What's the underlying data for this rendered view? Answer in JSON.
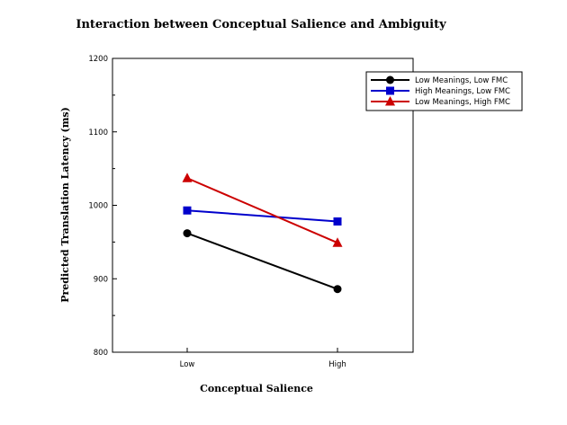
{
  "chart_data": {
    "type": "line",
    "title": "Interaction between Conceptual Salience and Ambiguity",
    "xlabel": "Conceptual Salience",
    "ylabel": "Predicted Translation Latency (ms)",
    "categories": [
      "Low",
      "High"
    ],
    "ylim": [
      800,
      1200
    ],
    "yticks": [
      "800",
      "900",
      "1000",
      "1100",
      "1200"
    ],
    "ytick_values": [
      800,
      900,
      1000,
      1100,
      1200
    ],
    "y_minor_step": 50,
    "grid": false,
    "legend_position": "top-right",
    "series": [
      {
        "name": "Low Meanings, Low FMC",
        "color": "#000000",
        "marker": "circle",
        "values": [
          962,
          886
        ]
      },
      {
        "name": "High Meanings, Low FMC",
        "color": "#0000cc",
        "marker": "square",
        "values": [
          993,
          978
        ]
      },
      {
        "name": "Low Meanings, High FMC",
        "color": "#cc0000",
        "marker": "triangle",
        "values": [
          1037,
          949
        ]
      }
    ]
  }
}
